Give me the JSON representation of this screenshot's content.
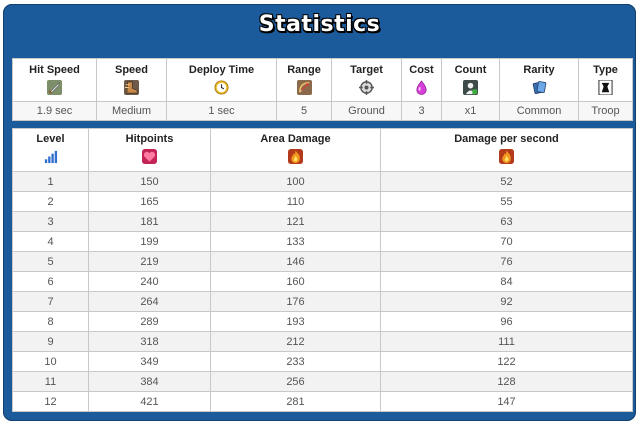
{
  "title": "Statistics",
  "stats": {
    "columns": [
      {
        "label": "Hit Speed",
        "icon": "sword-icon",
        "value": "1.9 sec"
      },
      {
        "label": "Speed",
        "icon": "boot-icon",
        "value": "Medium"
      },
      {
        "label": "Deploy Time",
        "icon": "clock-icon",
        "value": "1 sec"
      },
      {
        "label": "Range",
        "icon": "bow-icon",
        "value": "5"
      },
      {
        "label": "Target",
        "icon": "crosshair-icon",
        "value": "Ground"
      },
      {
        "label": "Cost",
        "icon": "elixir-drop-icon",
        "value": "3"
      },
      {
        "label": "Count",
        "icon": "person-icon",
        "value": "x1"
      },
      {
        "label": "Rarity",
        "icon": "cards-icon",
        "value": "Common"
      },
      {
        "label": "Type",
        "icon": "tower-icon",
        "value": "Troop"
      }
    ]
  },
  "levels": {
    "headers": [
      {
        "label": "Level",
        "icon": "level-bars-icon"
      },
      {
        "label": "Hitpoints",
        "icon": "heart-icon"
      },
      {
        "label": "Area Damage",
        "icon": "fire-icon"
      },
      {
        "label": "Damage per second",
        "icon": "fire-icon"
      }
    ],
    "rows": [
      [
        "1",
        "150",
        "100",
        "52"
      ],
      [
        "2",
        "165",
        "110",
        "55"
      ],
      [
        "3",
        "181",
        "121",
        "63"
      ],
      [
        "4",
        "199",
        "133",
        "70"
      ],
      [
        "5",
        "219",
        "146",
        "76"
      ],
      [
        "6",
        "240",
        "160",
        "84"
      ],
      [
        "7",
        "264",
        "176",
        "92"
      ],
      [
        "8",
        "289",
        "193",
        "96"
      ],
      [
        "9",
        "318",
        "212",
        "111"
      ],
      [
        "10",
        "349",
        "233",
        "122"
      ],
      [
        "11",
        "384",
        "256",
        "128"
      ],
      [
        "12",
        "421",
        "281",
        "147"
      ]
    ]
  },
  "colors": {
    "panel": "#1b5b9c",
    "heart": "#e8396b",
    "elixir": "#d63fd8",
    "fire": "#f39a1e"
  }
}
